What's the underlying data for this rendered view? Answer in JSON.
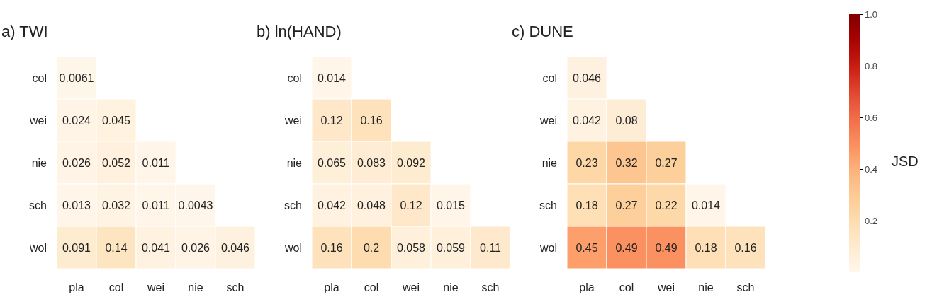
{
  "chart_data": [
    {
      "type": "heatmap",
      "title": "a) TWI",
      "categories": [
        "pla",
        "col",
        "wei",
        "nie",
        "sch"
      ],
      "y_categories": [
        "col",
        "wei",
        "nie",
        "sch",
        "wol"
      ],
      "data_labels": true,
      "cells": [
        [
          0.0061,
          null,
          null,
          null,
          null
        ],
        [
          0.024,
          0.045,
          null,
          null,
          null
        ],
        [
          0.026,
          0.052,
          0.011,
          null,
          null
        ],
        [
          0.013,
          0.032,
          0.011,
          0.0043,
          null
        ],
        [
          0.091,
          0.14,
          0.041,
          0.026,
          0.046
        ]
      ]
    },
    {
      "type": "heatmap",
      "title": "b) ln(HAND)",
      "categories": [
        "pla",
        "col",
        "wei",
        "nie",
        "sch"
      ],
      "y_categories": [
        "col",
        "wei",
        "nie",
        "sch",
        "wol"
      ],
      "data_labels": true,
      "cells": [
        [
          0.014,
          null,
          null,
          null,
          null
        ],
        [
          0.12,
          0.16,
          null,
          null,
          null
        ],
        [
          0.065,
          0.083,
          0.092,
          null,
          null
        ],
        [
          0.042,
          0.048,
          0.12,
          0.015,
          null
        ],
        [
          0.16,
          0.2,
          0.058,
          0.059,
          0.11
        ]
      ]
    },
    {
      "type": "heatmap",
      "title": "c) DUNE",
      "categories": [
        "pla",
        "col",
        "wei",
        "nie",
        "sch"
      ],
      "y_categories": [
        "col",
        "wei",
        "nie",
        "sch",
        "wol"
      ],
      "data_labels": true,
      "clabel": "JSD",
      "clim": [
        0,
        1
      ],
      "cticks": [
        0.2,
        0.4,
        0.6,
        0.8,
        {
          "value": 1,
          "label": "1.0"
        }
      ],
      "cells": [
        [
          0.046,
          null,
          null,
          null,
          null
        ],
        [
          0.042,
          0.08,
          null,
          null,
          null
        ],
        [
          0.23,
          0.32,
          0.27,
          null,
          null
        ],
        [
          0.18,
          0.27,
          0.22,
          0.014,
          null
        ],
        [
          0.45,
          0.49,
          0.49,
          0.18,
          0.16
        ]
      ]
    }
  ]
}
